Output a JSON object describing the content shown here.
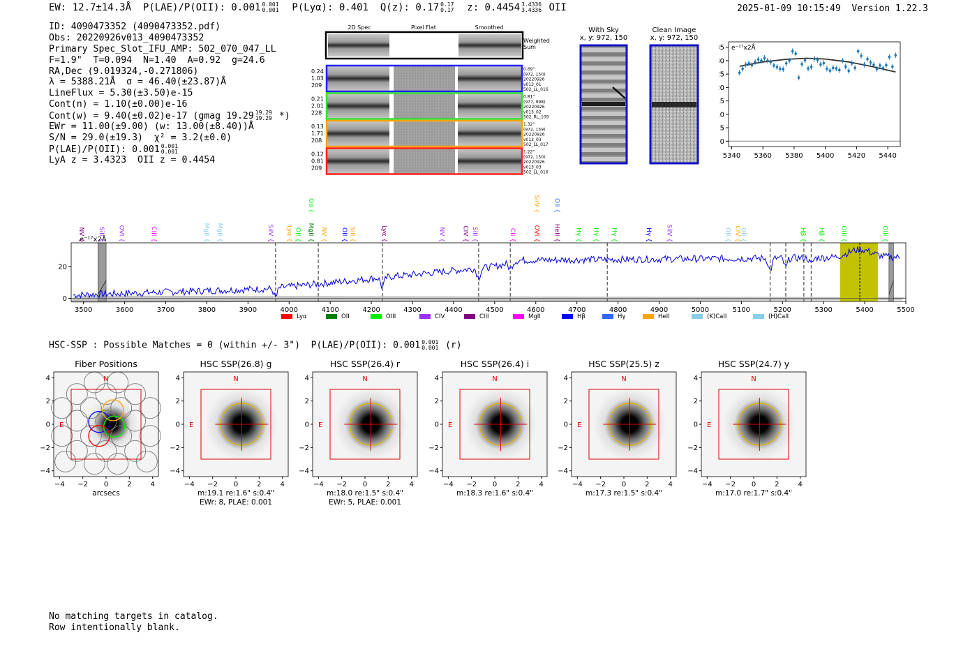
{
  "header": {
    "ew": "EW: 12.7±14.3Å",
    "plae_label": "P(LAE)/P(OII): 0.001",
    "plae_sup": "0.001",
    "plae_sub": "0.001",
    "plya": "P(Lyα): 0.401",
    "qz_label": "Q(z): 0.17",
    "qz_sup": "0.17",
    "qz_sub": "0.17",
    "z_label": "z: 0.4454",
    "z_sup": "3.4336",
    "z_sub": "3.4336",
    "z_line": "OII",
    "datetime": "2025-01-09 10:15:49",
    "version": "Version 1.22.3"
  },
  "info": {
    "id": "ID: 4090473352 (4090473352.pdf)",
    "obs": "Obs: 20220926v013_4090473352",
    "primary": "Primary Spec_Slot_IFU_AMP: 502_070_047_LL",
    "params": "F=1.9\"  T=0.094  N=1.40  A=0.92  g=24.6",
    "radec": "RA,Dec (9.019324,-0.271806)",
    "lambda": "λ = 5388.21Å  σ = 46.40(±23.87)Å",
    "lineflux": "LineFlux = 5.30(±3.50)e-15",
    "contn": "Cont(n) = 1.10(±0.00)e-16",
    "contw": "Cont(w) = 9.40(±0.02)e-17 (gmag 19.29",
    "contw_sup": "19.29",
    "contw_sub": "19.29",
    "contw_end": "*)",
    "ewr": "EWr = 11.00(±9.00) (w: 13.00(±8.40))Å",
    "sn": "S/N = 29.0(±19.3)  χ² = 3.2(±0.0)",
    "plae": "P(LAE)/P(OII): 0.001",
    "plae_sup": "0.001",
    "plae_sub": "0.001",
    "zline": "LyA z = 3.4323  OII z = 0.4454"
  },
  "cutouts": {
    "col_labels": [
      "2D Spec",
      "Pixel Flat",
      "Smoothed"
    ],
    "weighted_label": "Weighted\nSum",
    "rows": [
      {
        "left": [
          "0.24",
          "1.03",
          "209"
        ],
        "right": [
          "0.69\"",
          "(972, 150)",
          "20220926",
          "v013_01",
          "502_LL_016"
        ],
        "color": "#2020ff"
      },
      {
        "left": [
          "0.21",
          "2.01",
          "228"
        ],
        "right": [
          "0.81\"",
          "(977, 998)",
          "20220926",
          "v013_02",
          "502_RL_109"
        ],
        "color": "#30e030"
      },
      {
        "left": [
          "0.13",
          "1.71",
          "208"
        ],
        "right": [
          "1.32\"",
          "(972, 159)",
          "20220926",
          "v013_03",
          "502_LL_017"
        ],
        "color": "#ffa500"
      },
      {
        "left": [
          "0.12",
          "0.81",
          "209"
        ],
        "right": [
          "1.22\"",
          "(972, 150)",
          "20220926",
          "v013_03",
          "502_LL_016"
        ],
        "color": "#ff2020"
      }
    ]
  },
  "sky_panels": {
    "with_sky_title": "With Sky",
    "with_sky_coords": "x, y: 972, 150",
    "clean_title": "Clean Image",
    "clean_coords": "x, y: 972, 150"
  },
  "colors": {
    "spectrum": "#0000dd",
    "lya": "#ff0000",
    "oii": "#008000",
    "oiii": "#00ee00",
    "civ": "#9933ff",
    "ciii": "#800080",
    "mgii": "#ff00ff",
    "hbeta": "#0000ff",
    "hgamma": "#3366ff",
    "heii": "#ffa500",
    "call": "#87ceeb",
    "highlight": "#c2c200",
    "thumb_red": "#dd0000",
    "aperture": "#e0b000"
  },
  "chart_data": [
    {
      "type": "scatter",
      "title": "",
      "ylabel_text": "e⁻¹⁷x2Å",
      "xlim": [
        5338,
        5448
      ],
      "ylim": [
        -2,
        37
      ],
      "xticks": [
        5340,
        5360,
        5380,
        5400,
        5420,
        5440
      ],
      "yticks": [
        0,
        5,
        10,
        15,
        20,
        25,
        30,
        35
      ],
      "x": [
        5345,
        5347,
        5349,
        5351,
        5353,
        5355,
        5357,
        5359,
        5361,
        5363,
        5365,
        5367,
        5369,
        5371,
        5373,
        5375,
        5377,
        5379,
        5381,
        5383,
        5385,
        5387,
        5389,
        5391,
        5393,
        5395,
        5397,
        5399,
        5401,
        5403,
        5405,
        5407,
        5409,
        5411,
        5413,
        5415,
        5417,
        5419,
        5421,
        5423,
        5425,
        5427,
        5429,
        5431,
        5433,
        5435,
        5437,
        5439,
        5441,
        5443,
        5445
      ],
      "y": [
        25.5,
        27,
        28.5,
        29,
        28.3,
        29.5,
        30.5,
        30,
        31,
        30,
        29.5,
        28.2,
        27.6,
        27,
        26.8,
        29,
        30,
        33.5,
        32.6,
        23.7,
        28.7,
        30.1,
        27.1,
        27.7,
        30.7,
        30.3,
        28.6,
        29.1,
        27,
        26.3,
        27.3,
        27.1,
        26.5,
        30,
        27.8,
        26.2,
        29,
        27.3,
        33.5,
        31.8,
        28.5,
        30.6,
        29.3,
        28.4,
        26.9,
        28.2,
        27.2,
        28.3,
        31.4,
        27.8,
        32
      ],
      "fit_x": [
        5345,
        5360,
        5375,
        5388,
        5400,
        5415,
        5430,
        5445
      ],
      "fit_y": [
        27.9,
        29.5,
        30.5,
        30.9,
        30.6,
        29.5,
        27.8,
        25.8
      ]
    },
    {
      "type": "line",
      "title": "",
      "ylabel_text": "e⁻¹⁷x2Å",
      "xlim": [
        3470,
        5500
      ],
      "ylim": [
        -2,
        35
      ],
      "xticks": [
        3500,
        3600,
        3700,
        3800,
        3900,
        4000,
        4100,
        4200,
        4300,
        4400,
        4500,
        4600,
        4700,
        4800,
        4900,
        5000,
        5100,
        5200,
        5300,
        5400,
        5500
      ],
      "yticks": [
        0,
        20
      ],
      "dashed_lines": [
        3967,
        4071,
        4227,
        4461,
        4538,
        4774,
        5170,
        5208,
        5252,
        5270
      ],
      "highlight_band": [
        5340,
        5432
      ],
      "center_line": 5388,
      "grey_bands": [
        [
          3535,
          3555
        ],
        [
          5459,
          5470
        ]
      ],
      "line_labels": [
        {
          "wave": 3490,
          "label": "NV",
          "color": "#800080",
          "row": 1
        },
        {
          "wave": 3540,
          "label": "SiII",
          "color": "#9933ff",
          "row": 1
        },
        {
          "wave": 3588,
          "label": "OVI",
          "color": "#9933ff",
          "row": 1
        },
        {
          "wave": 3667,
          "label": "CIII",
          "color": "#ff00ff",
          "row": 1
        },
        {
          "wave": 3795,
          "label": "MgII",
          "color": "#87ceeb",
          "row": 1
        },
        {
          "wave": 3827,
          "label": "MgII",
          "color": "#87ceeb",
          "row": 1
        },
        {
          "wave": 3950,
          "label": "SiIV",
          "color": "#9933ff",
          "row": 1
        },
        {
          "wave": 3996,
          "label": "Lyα",
          "color": "#ffa500",
          "row": 1
        },
        {
          "wave": 4017,
          "label": "OII",
          "color": "#00ee00",
          "row": 1
        },
        {
          "wave": 4049,
          "label": "MgII",
          "color": "#008000",
          "row": 1
        },
        {
          "wave": 4049,
          "label": "OII",
          "color": "#00ee00",
          "row": 0
        },
        {
          "wave": 4080,
          "label": "NV",
          "color": "#ffa500",
          "row": 1
        },
        {
          "wave": 4130,
          "label": "OII",
          "color": "#0000ff",
          "row": 1
        },
        {
          "wave": 4150,
          "label": "SiII",
          "color": "#ffa500",
          "row": 1
        },
        {
          "wave": 4227,
          "label": "Lyα",
          "color": "#800080",
          "row": 1
        },
        {
          "wave": 4367,
          "label": "NV",
          "color": "#9933ff",
          "row": 1
        },
        {
          "wave": 4425,
          "label": "CIV",
          "color": "#800080",
          "row": 1
        },
        {
          "wave": 4448,
          "label": "SiII",
          "color": "#9933ff",
          "row": 1
        },
        {
          "wave": 4539,
          "label": "CII",
          "color": "#ff00ff",
          "row": 1
        },
        {
          "wave": 4598,
          "label": "OVI",
          "color": "#ff0000",
          "row": 1
        },
        {
          "wave": 4598,
          "label": "SiIV",
          "color": "#ffa500",
          "row": 0
        },
        {
          "wave": 4647,
          "label": "HeII",
          "color": "#800080",
          "row": 1
        },
        {
          "wave": 4647,
          "label": "OII",
          "color": "#3366ff",
          "row": 0
        },
        {
          "wave": 4700,
          "label": "Hγ",
          "color": "#00ee00",
          "row": 1
        },
        {
          "wave": 4742,
          "label": "Hγ",
          "color": "#00ee00",
          "row": 1
        },
        {
          "wave": 4786,
          "label": "Hγ",
          "color": "#00ee00",
          "row": 1
        },
        {
          "wave": 4870,
          "label": "Hγ",
          "color": "#0000ff",
          "row": 1
        },
        {
          "wave": 4920,
          "label": "SiIV",
          "color": "#9933ff",
          "row": 1
        },
        {
          "wave": 5063,
          "label": "OII",
          "color": "#87ceeb",
          "row": 1
        },
        {
          "wave": 5087,
          "label": "CIV",
          "color": "#ffa500",
          "row": 1
        },
        {
          "wave": 5100,
          "label": "OII",
          "color": "#87ceeb",
          "row": 1
        },
        {
          "wave": 5245,
          "label": "Hβ",
          "color": "#00ee00",
          "row": 1
        },
        {
          "wave": 5290,
          "label": "Hβ",
          "color": "#00ee00",
          "row": 1
        },
        {
          "wave": 5345,
          "label": "OIII",
          "color": "#00ee00",
          "row": 1
        },
        {
          "wave": 5445,
          "label": "OIII",
          "color": "#00ee00",
          "row": 1
        }
      ],
      "legend": [
        {
          "label": "Lyα",
          "color": "#ff0000"
        },
        {
          "label": "OII",
          "color": "#008000"
        },
        {
          "label": "OIII",
          "color": "#00ee00"
        },
        {
          "label": "CIV",
          "color": "#9933ff"
        },
        {
          "label": "CIII",
          "color": "#800080"
        },
        {
          "label": "MgII",
          "color": "#ff00ff"
        },
        {
          "label": "Hβ",
          "color": "#0000ff"
        },
        {
          "label": "Hγ",
          "color": "#3366ff"
        },
        {
          "label": "HeII",
          "color": "#ffa500"
        },
        {
          "label": "(K)CaII",
          "color": "#87ceeb"
        },
        {
          "label": "(H)CaII",
          "color": "#87ceeb"
        }
      ]
    }
  ],
  "hsc": {
    "title": "HSC-SSP : Possible Matches = 0 (within +/- 3\")  P(LAE)/P(OII): 0.001",
    "title_sup": "0.001",
    "title_sub": "0.001",
    "title_end": "(r)",
    "axis_ticks": [
      "−4",
      "−2",
      "0",
      "2",
      "4"
    ],
    "n_label": "N",
    "e_label": "E",
    "panels": [
      {
        "title": "Fiber Positions",
        "cap1": "arcsecs",
        "cap2": ""
      },
      {
        "title": "HSC SSP(26.8) g",
        "cap1": "m:19.1  re:1.6\"  s:0.4\"",
        "cap2": "EWr: 8, PLAE: 0.001"
      },
      {
        "title": "HSC SSP(26.4) r",
        "cap1": "m:18.0  re:1.5\"  s:0.4\"",
        "cap2": "EWr: 5, PLAE: 0.001"
      },
      {
        "title": "HSC SSP(26.4) i",
        "cap1": "m:18.3  re:1.6\"  s:0.4\"",
        "cap2": ""
      },
      {
        "title": "HSC SSP(25.5) z",
        "cap1": "m:17.3  re:1.5\"  s:0.4\"",
        "cap2": ""
      },
      {
        "title": "HSC SSP(24.7) y",
        "cap1": "m:17.0  re:1.7\"  s:0.4\"",
        "cap2": ""
      }
    ]
  },
  "footer": {
    "line1": "No matching targets in catalog.",
    "line2": "Row intentionally blank."
  }
}
